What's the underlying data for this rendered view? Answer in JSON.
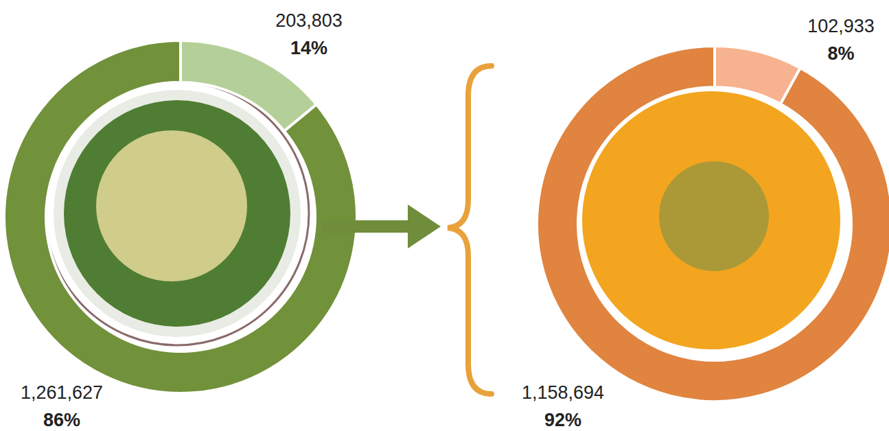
{
  "chart_data": [
    {
      "type": "pie",
      "values": [
        14,
        86
      ],
      "value_labels": [
        "14%",
        "86%"
      ],
      "counts": [
        203803,
        1261627
      ],
      "count_labels": [
        "203,803",
        "1,261,627"
      ],
      "colors": [
        "#b5cf98",
        "#72913b"
      ],
      "data_labels": true
    },
    {
      "type": "pie",
      "values": [
        8,
        92
      ],
      "value_labels": [
        "8%",
        "92%"
      ],
      "counts": [
        102933,
        1158694
      ],
      "count_labels": [
        "102,933",
        "1,158,694"
      ],
      "colors": [
        "#f7b28f",
        "#e0843f"
      ],
      "data_labels": true
    }
  ]
}
